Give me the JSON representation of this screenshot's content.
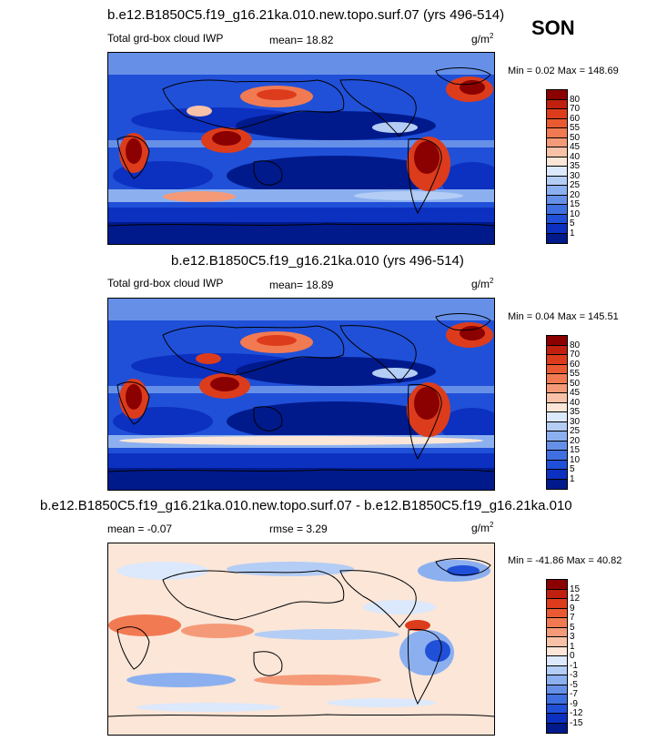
{
  "season": "SON",
  "panels": [
    {
      "title": "b.e12.B1850C5.f19_g16.21ka.010.new.topo.surf.07 (yrs 496-514)",
      "left_label": "Total grd-box cloud IWP",
      "mid_label": "mean=  18.82",
      "unit_base": "g/m",
      "unit_exp": "2",
      "minmax": "Min =   0.02 Max = 148.69"
    },
    {
      "title": "b.e12.B1850C5.f19_g16.21ka.010 (yrs 496-514)",
      "left_label": "Total grd-box cloud IWP",
      "mid_label": "mean=  18.89",
      "unit_base": "g/m",
      "unit_exp": "2",
      "minmax": "Min =  0.04 Max = 145.51"
    },
    {
      "title": "b.e12.B1850C5.f19_g16.21ka.010.new.topo.surf.07 - b.e12.B1850C5.f19_g16.21ka.010",
      "left_label": "mean =  -0.07",
      "mid_label": "rmse =   3.29",
      "unit_base": "g/m",
      "unit_exp": "2",
      "minmax": "Min = -41.86 Max =  40.82"
    }
  ],
  "colorbars": {
    "abs": {
      "labels": [
        "80",
        "70",
        "60",
        "55",
        "50",
        "45",
        "40",
        "35",
        "30",
        "25",
        "20",
        "15",
        "10",
        "5",
        "1"
      ],
      "colors": [
        "#8b0000",
        "#c0200f",
        "#dc3c1c",
        "#ea5a32",
        "#f27a52",
        "#f59a78",
        "#f8c2a8",
        "#fbe6d8",
        "#dce8fb",
        "#b4cdf5",
        "#8cb0ef",
        "#6690e8",
        "#4070e0",
        "#2050d8",
        "#0c30c0",
        "#001a8c"
      ]
    },
    "diff": {
      "labels": [
        "15",
        "12",
        "9",
        "7",
        "5",
        "3",
        "1",
        "0",
        "-1",
        "-3",
        "-5",
        "-7",
        "-9",
        "-12",
        "-15"
      ],
      "colors": [
        "#8b0000",
        "#c0200f",
        "#dc3c1c",
        "#ea5a32",
        "#f27a52",
        "#f59a78",
        "#f8c2a8",
        "#fbe6d8",
        "#dce8fb",
        "#b4cdf5",
        "#8cb0ef",
        "#6690e8",
        "#4070e0",
        "#2050d8",
        "#0c30c0",
        "#001a8c"
      ]
    }
  }
}
